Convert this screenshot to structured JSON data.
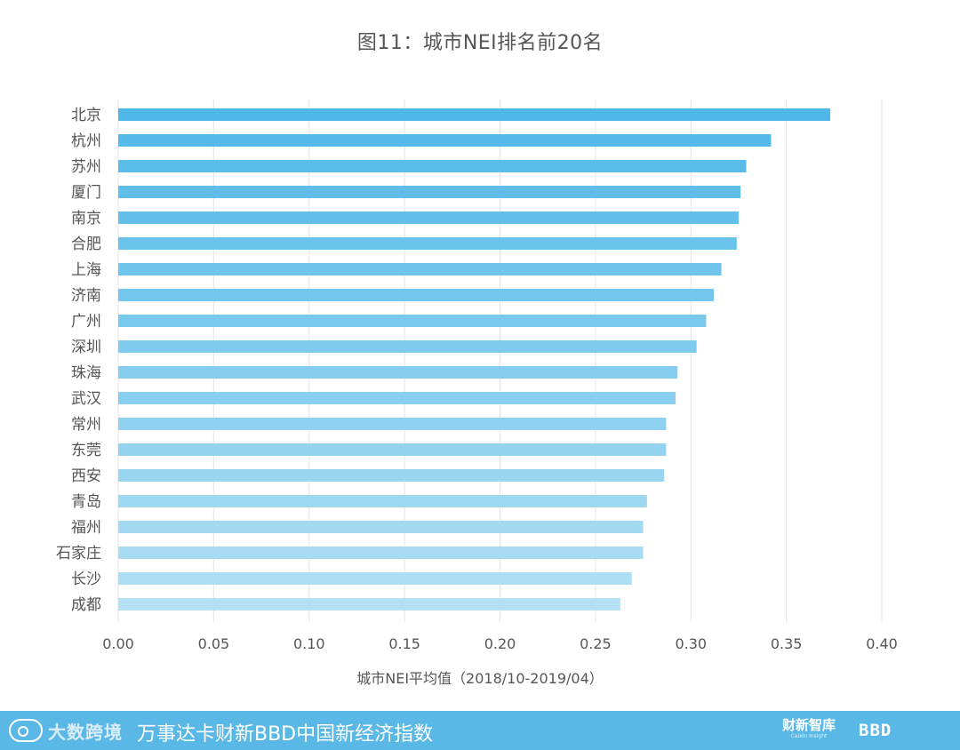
{
  "chart_data": {
    "type": "bar",
    "orientation": "horizontal",
    "title": "图11：城市NEI排名前20名",
    "xlabel": "城市NEI平均值（2018/10-2019/04）",
    "ylabel": "",
    "xlim": [
      0,
      0.4
    ],
    "xticks": [
      "0.00",
      "0.05",
      "0.10",
      "0.15",
      "0.20",
      "0.25",
      "0.30",
      "0.35",
      "0.40"
    ],
    "grid": "vertical",
    "categories": [
      "北京",
      "杭州",
      "苏州",
      "厦门",
      "南京",
      "合肥",
      "上海",
      "济南",
      "广州",
      "深圳",
      "珠海",
      "武汉",
      "常州",
      "东莞",
      "西安",
      "青岛",
      "福州",
      "石家庄",
      "长沙",
      "成都"
    ],
    "values": [
      0.373,
      0.342,
      0.329,
      0.326,
      0.325,
      0.324,
      0.316,
      0.312,
      0.308,
      0.303,
      0.293,
      0.292,
      0.287,
      0.287,
      0.286,
      0.277,
      0.275,
      0.275,
      0.269,
      0.263
    ],
    "colors": {
      "bar_top": "#4fb8e8",
      "bar_bottom": "#b3e0f4",
      "grid": "#e5e5e5",
      "text": "#555555"
    }
  },
  "footer": {
    "brand": "大数跨境",
    "title": "万事达卡财新BBD中国新经济指数",
    "logo_caixin": "财新智库",
    "logo_caixin_en": "Caixin Insight",
    "logo_bbd": "BBD",
    "background": "#5ab8e6"
  }
}
